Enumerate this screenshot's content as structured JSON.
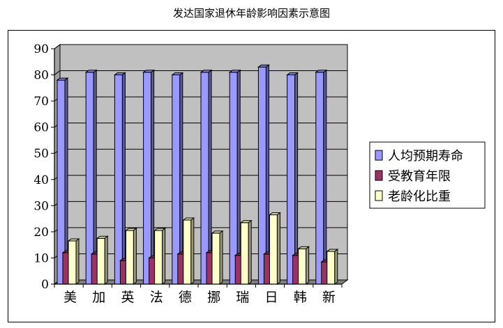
{
  "chart_data": {
    "type": "bar",
    "title": "发达国家退休年龄影响因素示意图",
    "categories": [
      "美",
      "加",
      "英",
      "法",
      "德",
      "挪",
      "瑞",
      "日",
      "韩",
      "新"
    ],
    "series": [
      {
        "name": "人均预期寿命",
        "values": [
          78,
          81,
          80,
          81,
          80,
          81,
          81,
          83,
          80,
          81
        ],
        "color": "#9999ff"
      },
      {
        "name": "受教育年限",
        "values": [
          12,
          11.5,
          9,
          10,
          11.5,
          12,
          11,
          11.5,
          11,
          8.5
        ],
        "color": "#993366"
      },
      {
        "name": "老龄化比重",
        "values": [
          16.5,
          17.5,
          20.5,
          20.5,
          24.5,
          19.5,
          23.5,
          26.5,
          13.5,
          12.5
        ],
        "color": "#ffffcc"
      }
    ],
    "yticks": [
      0,
      10,
      20,
      30,
      40,
      50,
      60,
      70,
      80,
      90
    ],
    "ylim": [
      0,
      90
    ],
    "grid": true,
    "legend": "right",
    "plot_background": "#c0c0c0"
  }
}
